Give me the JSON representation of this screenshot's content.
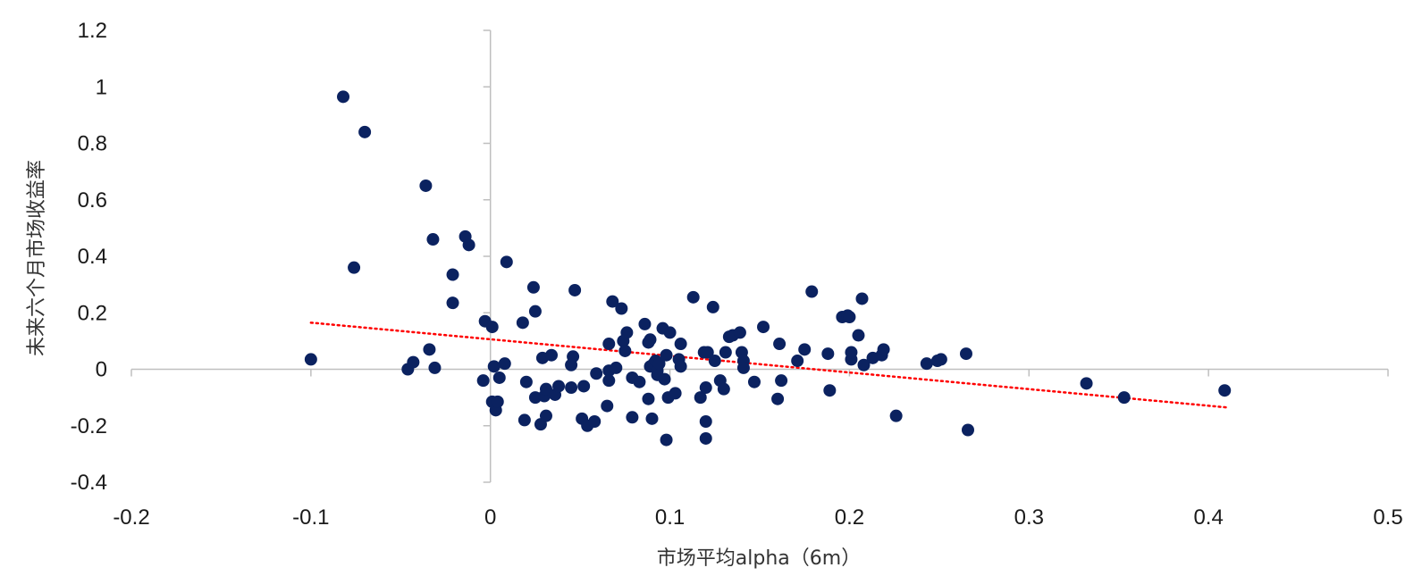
{
  "chart_data": {
    "type": "scatter",
    "title": "",
    "xlabel": "市场平均alpha（6m）",
    "ylabel": "未来六个月市场收益率",
    "xlim": [
      -0.2,
      0.5
    ],
    "ylim": [
      -0.4,
      1.2
    ],
    "x_ticks": [
      "-0.2",
      "-0.1",
      "0",
      "0.1",
      "0.2",
      "0.3",
      "0.4",
      "0.5"
    ],
    "y_ticks": [
      "1.2",
      "1",
      "0.8",
      "0.6",
      "0.4",
      "0.2",
      "0",
      "-0.2",
      "-0.4"
    ],
    "grid": false,
    "legend": "none",
    "marker_color": "#0b2260",
    "trendline": {
      "style": "dotted",
      "color": "#ff0000",
      "x": [
        -0.1,
        0.41
      ],
      "y": [
        0.165,
        -0.135
      ]
    },
    "points": [
      [
        -0.1,
        0.035
      ],
      [
        -0.082,
        0.965
      ],
      [
        -0.07,
        0.84
      ],
      [
        -0.076,
        0.36
      ],
      [
        -0.046,
        0.0
      ],
      [
        -0.043,
        0.025
      ],
      [
        -0.036,
        0.65
      ],
      [
        -0.034,
        0.07
      ],
      [
        -0.032,
        0.46
      ],
      [
        -0.031,
        0.005
      ],
      [
        -0.021,
        0.335
      ],
      [
        -0.021,
        0.235
      ],
      [
        -0.014,
        0.47
      ],
      [
        -0.012,
        0.44
      ],
      [
        -0.003,
        0.17
      ],
      [
        -0.004,
        -0.04
      ],
      [
        0.001,
        0.15
      ],
      [
        0.002,
        0.01
      ],
      [
        0.001,
        -0.115
      ],
      [
        0.003,
        -0.145
      ],
      [
        0.004,
        -0.115
      ],
      [
        0.005,
        -0.03
      ],
      [
        0.008,
        0.02
      ],
      [
        0.009,
        0.38
      ],
      [
        0.018,
        0.165
      ],
      [
        0.019,
        -0.18
      ],
      [
        0.02,
        -0.045
      ],
      [
        0.024,
        0.29
      ],
      [
        0.025,
        -0.1
      ],
      [
        0.025,
        0.205
      ],
      [
        0.028,
        -0.195
      ],
      [
        0.029,
        0.04
      ],
      [
        0.03,
        -0.095
      ],
      [
        0.031,
        -0.07
      ],
      [
        0.031,
        -0.165
      ],
      [
        0.034,
        0.05
      ],
      [
        0.036,
        -0.09
      ],
      [
        0.038,
        -0.06
      ],
      [
        0.045,
        0.015
      ],
      [
        0.045,
        -0.065
      ],
      [
        0.046,
        0.045
      ],
      [
        0.047,
        0.28
      ],
      [
        0.051,
        -0.175
      ],
      [
        0.052,
        -0.06
      ],
      [
        0.054,
        -0.2
      ],
      [
        0.058,
        -0.185
      ],
      [
        0.059,
        -0.015
      ],
      [
        0.065,
        -0.13
      ],
      [
        0.066,
        -0.005
      ],
      [
        0.066,
        0.09
      ],
      [
        0.066,
        -0.04
      ],
      [
        0.068,
        0.24
      ],
      [
        0.07,
        0.005
      ],
      [
        0.073,
        0.215
      ],
      [
        0.074,
        0.1
      ],
      [
        0.075,
        0.065
      ],
      [
        0.076,
        0.13
      ],
      [
        0.079,
        -0.03
      ],
      [
        0.079,
        -0.17
      ],
      [
        0.083,
        -0.045
      ],
      [
        0.086,
        0.16
      ],
      [
        0.088,
        0.095
      ],
      [
        0.088,
        -0.105
      ],
      [
        0.09,
        -0.175
      ],
      [
        0.089,
        0.105
      ],
      [
        0.089,
        0.01
      ],
      [
        0.091,
        0.02
      ],
      [
        0.092,
        0.03
      ],
      [
        0.093,
        -0.02
      ],
      [
        0.093,
        -0.005
      ],
      [
        0.094,
        0.02
      ],
      [
        0.096,
        0.145
      ],
      [
        0.097,
        -0.035
      ],
      [
        0.098,
        0.05
      ],
      [
        0.098,
        -0.25
      ],
      [
        0.099,
        -0.1
      ],
      [
        0.1,
        0.13
      ],
      [
        0.103,
        -0.085
      ],
      [
        0.105,
        0.035
      ],
      [
        0.106,
        0.01
      ],
      [
        0.106,
        0.09
      ],
      [
        0.113,
        0.255
      ],
      [
        0.117,
        -0.1
      ],
      [
        0.119,
        0.06
      ],
      [
        0.12,
        -0.065
      ],
      [
        0.12,
        -0.185
      ],
      [
        0.12,
        -0.245
      ],
      [
        0.121,
        0.06
      ],
      [
        0.124,
        0.22
      ],
      [
        0.125,
        0.03
      ],
      [
        0.128,
        -0.04
      ],
      [
        0.13,
        -0.07
      ],
      [
        0.131,
        0.06
      ],
      [
        0.133,
        0.115
      ],
      [
        0.135,
        0.12
      ],
      [
        0.139,
        0.13
      ],
      [
        0.14,
        0.06
      ],
      [
        0.141,
        0.03
      ],
      [
        0.141,
        0.005
      ],
      [
        0.147,
        -0.045
      ],
      [
        0.152,
        0.15
      ],
      [
        0.16,
        -0.105
      ],
      [
        0.161,
        0.09
      ],
      [
        0.162,
        -0.04
      ],
      [
        0.171,
        0.03
      ],
      [
        0.175,
        0.07
      ],
      [
        0.179,
        0.275
      ],
      [
        0.188,
        0.055
      ],
      [
        0.189,
        -0.075
      ],
      [
        0.196,
        0.185
      ],
      [
        0.199,
        0.19
      ],
      [
        0.2,
        0.185
      ],
      [
        0.201,
        0.035
      ],
      [
        0.201,
        0.06
      ],
      [
        0.205,
        0.12
      ],
      [
        0.207,
        0.25
      ],
      [
        0.208,
        0.015
      ],
      [
        0.213,
        0.04
      ],
      [
        0.218,
        0.05
      ],
      [
        0.219,
        0.07
      ],
      [
        0.226,
        -0.165
      ],
      [
        0.243,
        0.02
      ],
      [
        0.249,
        0.03
      ],
      [
        0.251,
        0.035
      ],
      [
        0.265,
        0.055
      ],
      [
        0.266,
        -0.215
      ],
      [
        0.332,
        -0.05
      ],
      [
        0.353,
        -0.1
      ],
      [
        0.409,
        -0.075
      ]
    ]
  }
}
